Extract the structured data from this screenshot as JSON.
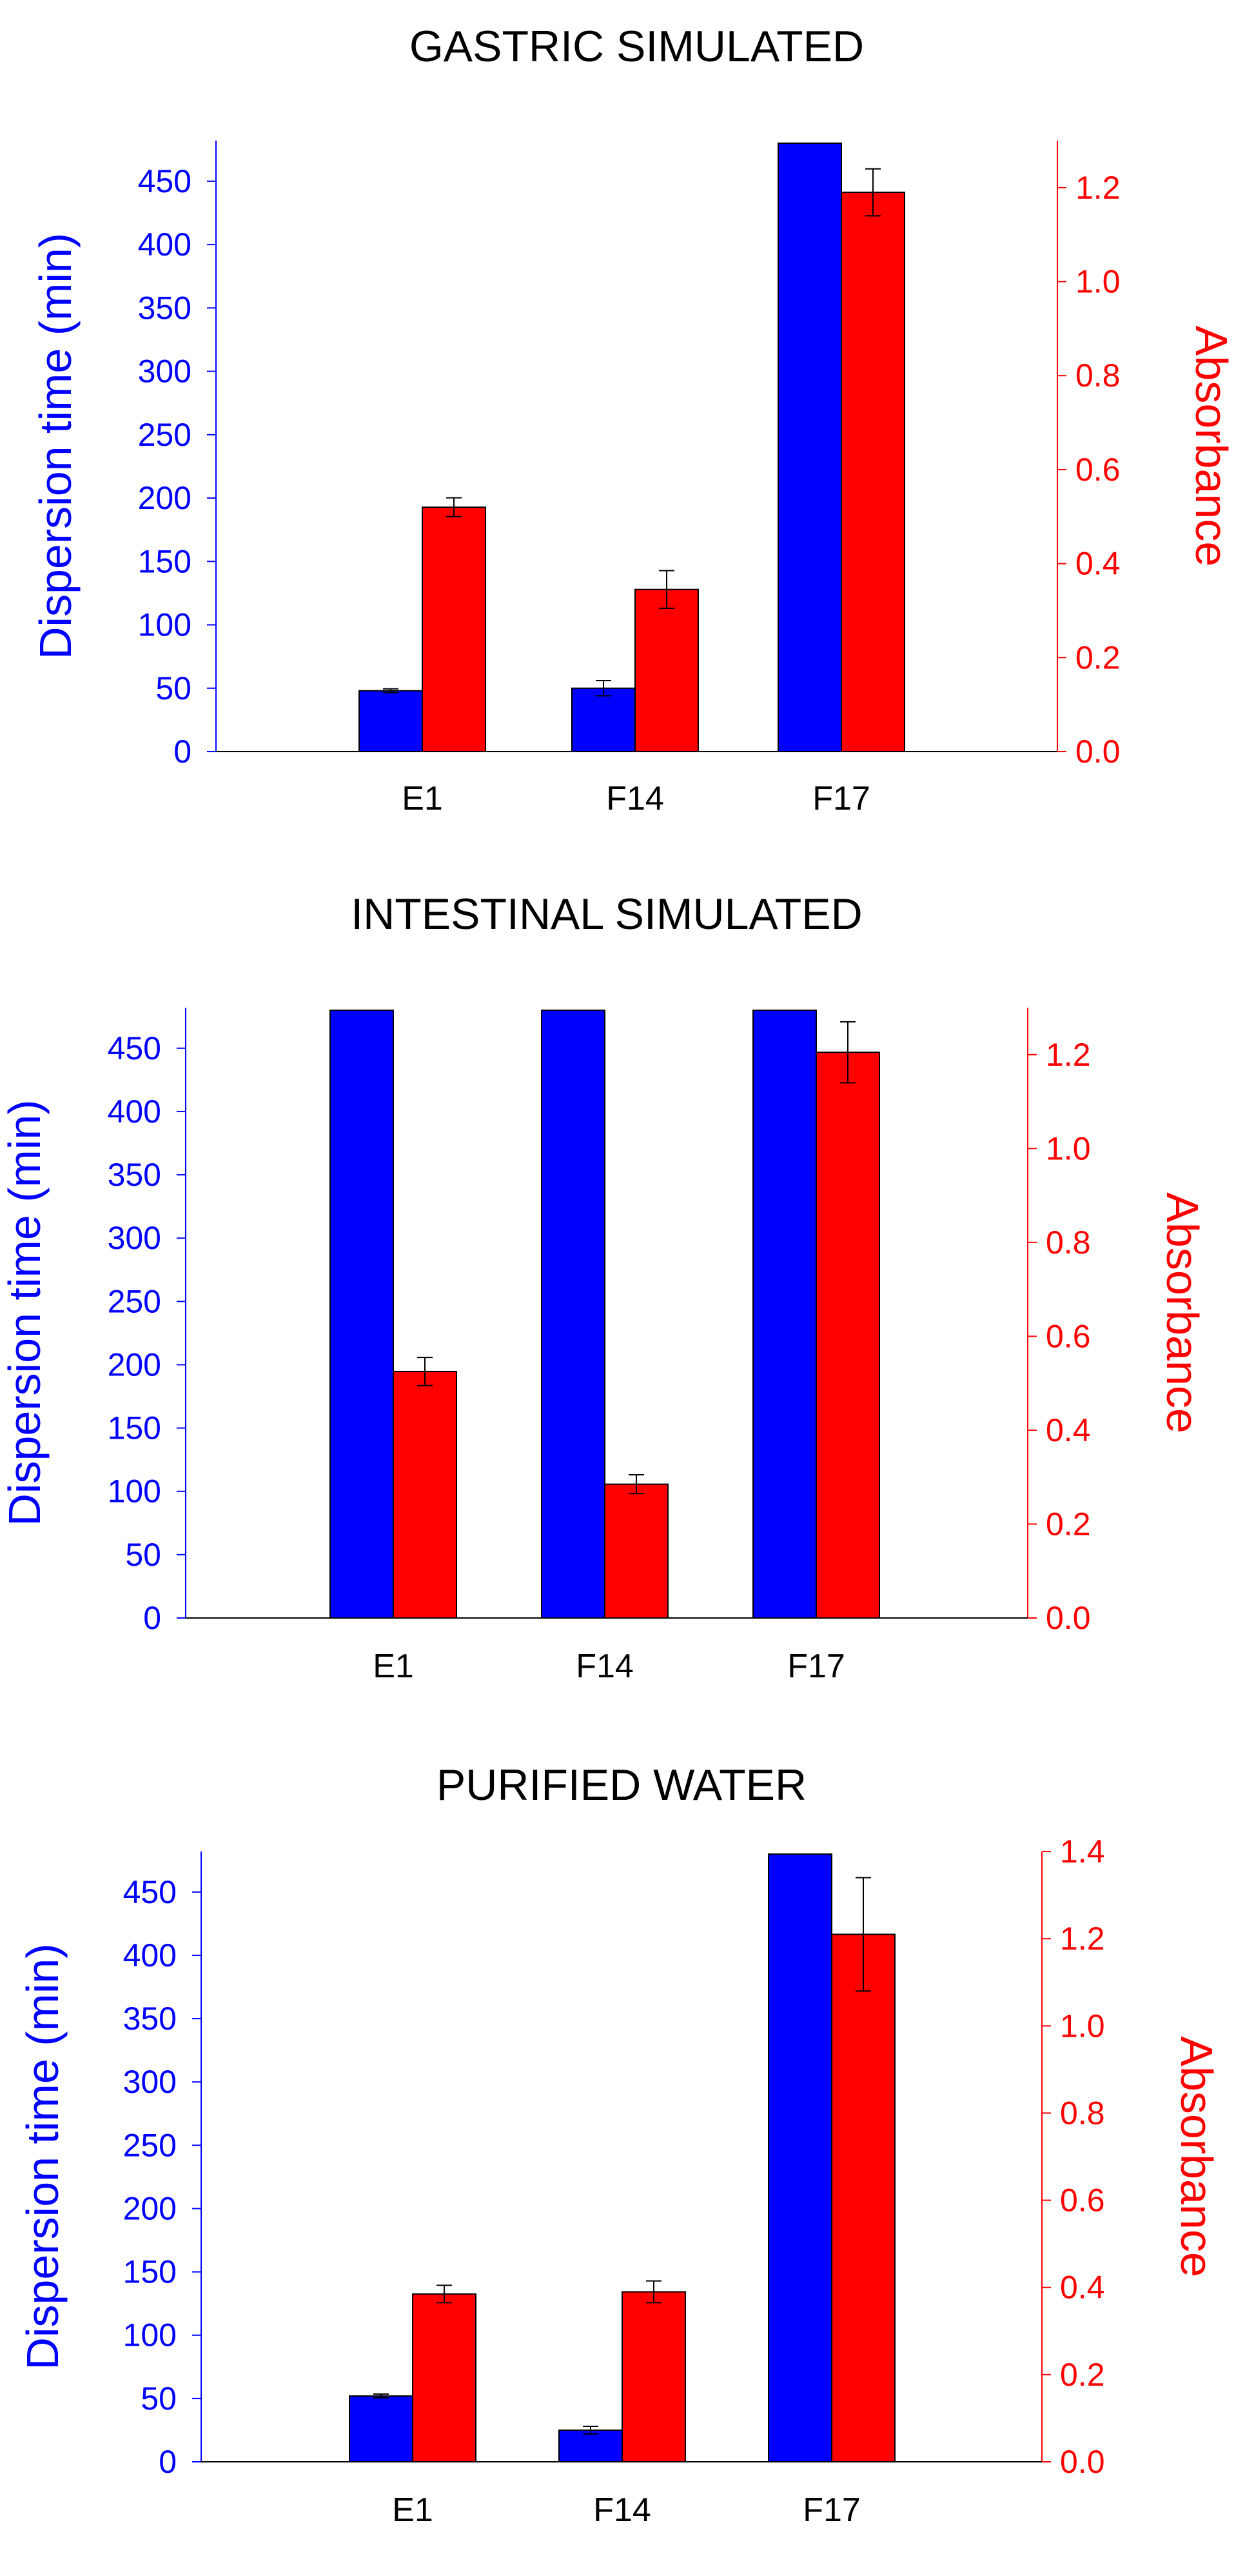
{
  "chart_data": [
    {
      "type": "bar",
      "title": "GASTRIC SIMULATED",
      "categories": [
        "E1",
        "F14",
        "F17"
      ],
      "series": [
        {
          "name": "Dispersion time",
          "axis": "left",
          "color": "#0000ff",
          "values": [
            48,
            50,
            480
          ],
          "errors": [
            1.5,
            6,
            0
          ]
        },
        {
          "name": "Absorbance",
          "axis": "right",
          "color": "#ff0000",
          "values": [
            0.52,
            0.345,
            1.19
          ],
          "errors": [
            0.02,
            0.04,
            0.05
          ]
        }
      ],
      "ylabel_left": "Dispersion time (min)",
      "ylabel_right": "Absorbance",
      "ylim_left": [
        0,
        482
      ],
      "ylim_right": [
        0,
        1.3
      ],
      "yticks_left": [
        0,
        50,
        100,
        150,
        200,
        250,
        300,
        350,
        400,
        450
      ],
      "yticks_right": [
        0.0,
        0.2,
        0.4,
        0.6,
        0.8,
        1.0,
        1.2
      ],
      "ytick_labels_left": [
        "0",
        "50",
        "100",
        "150",
        "200",
        "250",
        "300",
        "350",
        "400",
        "450"
      ],
      "ytick_labels_right": [
        "0.0",
        "0.2",
        "0.4",
        "0.6",
        "0.8",
        "1.0",
        "1.2"
      ]
    },
    {
      "type": "bar",
      "title": "INTESTINAL SIMULATED",
      "categories": [
        "E1",
        "F14",
        "F17"
      ],
      "series": [
        {
          "name": "Dispersion time",
          "axis": "left",
          "color": "#0000ff",
          "values": [
            480,
            480,
            480
          ],
          "errors": [
            0,
            0,
            0
          ]
        },
        {
          "name": "Absorbance",
          "axis": "right",
          "color": "#ff0000",
          "values": [
            0.525,
            0.285,
            1.205
          ],
          "errors": [
            0.03,
            0.02,
            0.065
          ]
        }
      ],
      "ylabel_left": "Dispersion time (min)",
      "ylabel_right": "Absorbance",
      "ylim_left": [
        0,
        482
      ],
      "ylim_right": [
        0,
        1.3
      ],
      "yticks_left": [
        0,
        50,
        100,
        150,
        200,
        250,
        300,
        350,
        400,
        450
      ],
      "yticks_right": [
        0.0,
        0.2,
        0.4,
        0.6,
        0.8,
        1.0,
        1.2
      ],
      "ytick_labels_left": [
        "0",
        "50",
        "100",
        "150",
        "200",
        "250",
        "300",
        "350",
        "400",
        "450"
      ],
      "ytick_labels_right": [
        "0.0",
        "0.2",
        "0.4",
        "0.6",
        "0.8",
        "1.0",
        "1.2"
      ]
    },
    {
      "type": "bar",
      "title": "PURIFIED WATER",
      "categories": [
        "E1",
        "F14",
        "F17"
      ],
      "series": [
        {
          "name": "Dispersion time",
          "axis": "left",
          "color": "#0000ff",
          "values": [
            52,
            25,
            480
          ],
          "errors": [
            1.5,
            3,
            0
          ]
        },
        {
          "name": "Absorbance",
          "axis": "right",
          "color": "#ff0000",
          "values": [
            0.385,
            0.39,
            1.21
          ],
          "errors": [
            0.02,
            0.025,
            0.13
          ]
        }
      ],
      "ylabel_left": "Dispersion time (min)",
      "ylabel_right": "Absorbance",
      "ylim_left": [
        0,
        482
      ],
      "ylim_right": [
        0,
        1.4
      ],
      "yticks_left": [
        0,
        50,
        100,
        150,
        200,
        250,
        300,
        350,
        400,
        450
      ],
      "yticks_right": [
        0.0,
        0.2,
        0.4,
        0.6,
        0.8,
        1.0,
        1.2,
        1.4
      ],
      "ytick_labels_left": [
        "0",
        "50",
        "100",
        "150",
        "200",
        "250",
        "300",
        "350",
        "400",
        "450"
      ],
      "ytick_labels_right": [
        "0.0",
        "0.2",
        "0.4",
        "0.6",
        "0.8",
        "1.0",
        "1.2",
        "1.4"
      ]
    }
  ]
}
